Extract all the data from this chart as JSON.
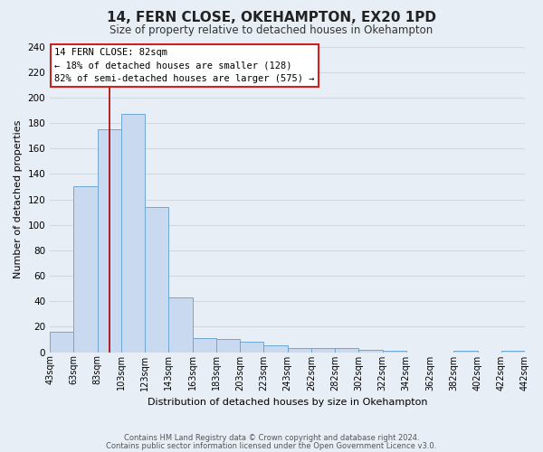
{
  "title": "14, FERN CLOSE, OKEHAMPTON, EX20 1PD",
  "subtitle": "Size of property relative to detached houses in Okehampton",
  "xlabel": "Distribution of detached houses by size in Okehampton",
  "ylabel": "Number of detached properties",
  "bar_values": [
    16,
    130,
    175,
    187,
    114,
    43,
    11,
    10,
    8,
    5,
    3,
    3,
    3,
    2,
    1,
    0,
    0,
    1,
    0,
    1
  ],
  "bin_labels": [
    "43sqm",
    "63sqm",
    "83sqm",
    "103sqm",
    "123sqm",
    "143sqm",
    "163sqm",
    "183sqm",
    "203sqm",
    "223sqm",
    "243sqm",
    "262sqm",
    "282sqm",
    "302sqm",
    "322sqm",
    "342sqm",
    "362sqm",
    "382sqm",
    "402sqm",
    "422sqm",
    "442sqm"
  ],
  "bar_color": "#c9d9ef",
  "bar_edge_color": "#6fa8d4",
  "vline_color": "#aa0000",
  "ylim": [
    0,
    240
  ],
  "yticks": [
    0,
    20,
    40,
    60,
    80,
    100,
    120,
    140,
    160,
    180,
    200,
    220,
    240
  ],
  "annotation_lines": [
    "14 FERN CLOSE: 82sqm",
    "← 18% of detached houses are smaller (128)",
    "82% of semi-detached houses are larger (575) →"
  ],
  "footer_line1": "Contains HM Land Registry data © Crown copyright and database right 2024.",
  "footer_line2": "Contains public sector information licensed under the Open Government Licence v3.0.",
  "bg_color": "#e8eef5",
  "grid_color": "#d0d8e4"
}
